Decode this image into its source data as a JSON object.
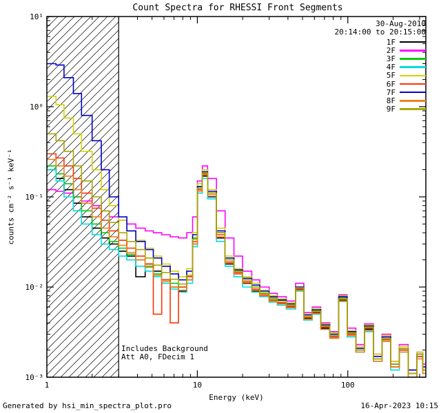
{
  "title": "Count Spectra for RHESSI Front Segments",
  "header": {
    "date": "30-Aug-2010",
    "time_range": "20:14:00 to 20:15:00"
  },
  "annotations": {
    "background": "Includes Background",
    "attenuator": "Att A0, FDecim 1"
  },
  "footer": {
    "left": "Generated by hsi_min_spectra_plot.pro",
    "right": "16-Apr-2023 10:15"
  },
  "axes": {
    "xlabel": "Energy (keV)",
    "ylabel": "counts cm⁻² s⁻¹ keV⁻¹",
    "x_tick_labels": [
      "1",
      "10",
      "100"
    ],
    "y_tick_labels": [
      "10⁻³",
      "10⁻²",
      "10⁻¹",
      "10⁰",
      "10¹"
    ]
  },
  "chart_data": {
    "type": "line",
    "title": "Count Spectra for RHESSI Front Segments",
    "xlabel": "Energy (keV)",
    "ylabel": "counts cm^-2 s^-1 keV^-1",
    "x_scale": "log",
    "y_scale": "log",
    "xlim": [
      1,
      330
    ],
    "ylim": [
      0.001,
      10
    ],
    "grid": false,
    "legend_position": "top-right",
    "hatch_region": {
      "x_min": 1,
      "x_max": 3
    },
    "x": [
      1.0,
      1.15,
      1.3,
      1.5,
      1.7,
      2.0,
      2.3,
      2.6,
      3.0,
      3.4,
      3.9,
      4.5,
      5.1,
      5.8,
      6.6,
      7.5,
      8.5,
      9.3,
      10.0,
      10.8,
      11.7,
      13.4,
      15.3,
      17.5,
      20,
      23,
      26,
      30,
      34,
      39,
      45,
      51,
      58,
      66,
      76,
      87,
      99,
      113,
      129,
      148,
      169,
      193,
      220,
      252,
      288,
      315
    ],
    "series": [
      {
        "name": "1F",
        "color": "#000000",
        "values": [
          0.2,
          0.16,
          0.12,
          0.085,
          0.06,
          0.045,
          0.035,
          0.03,
          0.025,
          0.022,
          0.013,
          0.018,
          0.015,
          0.012,
          0.01,
          0.009,
          0.012,
          0.03,
          0.12,
          0.17,
          0.1,
          0.035,
          0.018,
          0.014,
          0.011,
          0.009,
          0.008,
          0.007,
          0.0066,
          0.006,
          0.0095,
          0.0045,
          0.0052,
          0.0035,
          0.0028,
          0.0072,
          0.003,
          0.002,
          0.0034,
          0.0016,
          0.0026,
          0.0013,
          0.002,
          0.001,
          0.0017,
          0.0012
        ]
      },
      {
        "name": "2F",
        "color": "#ff00ff",
        "values": [
          0.12,
          0.115,
          0.11,
          0.1,
          0.09,
          0.08,
          0.07,
          0.06,
          0.055,
          0.05,
          0.045,
          0.042,
          0.04,
          0.038,
          0.036,
          0.035,
          0.04,
          0.06,
          0.15,
          0.22,
          0.16,
          0.07,
          0.035,
          0.022,
          0.015,
          0.012,
          0.01,
          0.0085,
          0.0078,
          0.007,
          0.011,
          0.0052,
          0.006,
          0.004,
          0.0032,
          0.0082,
          0.0035,
          0.0023,
          0.0039,
          0.0018,
          0.003,
          0.0015,
          0.0023,
          0.0012,
          0.0019,
          0.0014
        ]
      },
      {
        "name": "3F",
        "color": "#00cc00",
        "values": [
          0.22,
          0.18,
          0.14,
          0.1,
          0.07,
          0.05,
          0.04,
          0.032,
          0.027,
          0.023,
          0.02,
          0.017,
          0.014,
          0.012,
          0.011,
          0.01,
          0.013,
          0.035,
          0.13,
          0.19,
          0.11,
          0.04,
          0.02,
          0.015,
          0.012,
          0.01,
          0.0085,
          0.0075,
          0.007,
          0.0063,
          0.01,
          0.0047,
          0.0055,
          0.0037,
          0.0029,
          0.0076,
          0.0031,
          0.0021,
          0.0036,
          0.0017,
          0.0027,
          0.0014,
          0.0021,
          0.0011,
          0.0018,
          0.0012
        ]
      },
      {
        "name": "4F",
        "color": "#00dddd",
        "values": [
          0.2,
          0.15,
          0.1,
          0.07,
          0.05,
          0.038,
          0.03,
          0.026,
          0.022,
          0.02,
          0.017,
          0.015,
          0.013,
          0.011,
          0.0095,
          0.0088,
          0.011,
          0.028,
          0.11,
          0.16,
          0.095,
          0.032,
          0.017,
          0.013,
          0.01,
          0.0088,
          0.0078,
          0.0068,
          0.0063,
          0.0057,
          0.009,
          0.0043,
          0.005,
          0.0034,
          0.0027,
          0.0069,
          0.0028,
          0.0019,
          0.0032,
          0.0015,
          0.0025,
          0.0012,
          0.0019,
          0.001,
          0.0016,
          0.0011
        ]
      },
      {
        "name": "5F",
        "color": "#d4d400",
        "values": [
          1.3,
          1.05,
          0.75,
          0.5,
          0.32,
          0.2,
          0.12,
          0.08,
          0.055,
          0.042,
          0.033,
          0.027,
          0.022,
          0.018,
          0.015,
          0.013,
          0.016,
          0.04,
          0.14,
          0.2,
          0.12,
          0.045,
          0.022,
          0.016,
          0.013,
          0.011,
          0.0092,
          0.008,
          0.0074,
          0.0067,
          0.01,
          0.005,
          0.0058,
          0.0039,
          0.0031,
          0.008,
          0.0033,
          0.0022,
          0.0038,
          0.0018,
          0.0029,
          0.0015,
          0.0022,
          0.0012,
          0.0019,
          0.0013
        ]
      },
      {
        "name": "6F",
        "color": "#ff3300",
        "values": [
          0.3,
          0.27,
          0.22,
          0.16,
          0.11,
          0.075,
          0.055,
          0.042,
          0.033,
          0.027,
          0.022,
          0.018,
          0.005,
          0.012,
          0.004,
          0.01,
          0.013,
          0.032,
          0.12,
          0.18,
          0.11,
          0.038,
          0.019,
          0.0145,
          0.0115,
          0.0095,
          0.0082,
          0.0072,
          0.0067,
          0.0061,
          0.0096,
          0.0046,
          0.0053,
          0.0036,
          0.0028,
          0.0073,
          0.003,
          0.002,
          0.0035,
          0.0016,
          0.0026,
          0.0013,
          0.002,
          0.0011,
          0.0017,
          0.0012
        ]
      },
      {
        "name": "7F",
        "color": "#0000cc",
        "values": [
          3.0,
          2.9,
          2.1,
          1.4,
          0.8,
          0.42,
          0.2,
          0.1,
          0.06,
          0.042,
          0.032,
          0.026,
          0.021,
          0.017,
          0.014,
          0.012,
          0.015,
          0.038,
          0.13,
          0.19,
          0.115,
          0.042,
          0.021,
          0.0155,
          0.0125,
          0.0105,
          0.009,
          0.0078,
          0.0072,
          0.0065,
          0.01,
          0.0049,
          0.0056,
          0.0038,
          0.003,
          0.0078,
          0.0032,
          0.0021,
          0.0037,
          0.0017,
          0.0028,
          0.0014,
          0.0021,
          0.0012,
          0.0018,
          0.0013
        ]
      },
      {
        "name": "8F",
        "color": "#f08020",
        "values": [
          0.26,
          0.22,
          0.17,
          0.12,
          0.085,
          0.06,
          0.045,
          0.036,
          0.029,
          0.024,
          0.02,
          0.0165,
          0.0135,
          0.0115,
          0.01,
          0.0092,
          0.012,
          0.03,
          0.115,
          0.175,
          0.105,
          0.036,
          0.0185,
          0.014,
          0.0112,
          0.0092,
          0.008,
          0.007,
          0.0065,
          0.0059,
          0.0092,
          0.0044,
          0.0051,
          0.0034,
          0.0027,
          0.007,
          0.0029,
          0.0019,
          0.0033,
          0.0015,
          0.0025,
          0.0013,
          0.0019,
          0.001,
          0.0016,
          0.0011
        ]
      },
      {
        "name": "9F",
        "color": "#a8a800",
        "values": [
          0.5,
          0.42,
          0.32,
          0.22,
          0.15,
          0.1,
          0.07,
          0.052,
          0.04,
          0.032,
          0.026,
          0.021,
          0.0175,
          0.0145,
          0.0122,
          0.0108,
          0.0135,
          0.034,
          0.125,
          0.185,
          0.11,
          0.04,
          0.02,
          0.015,
          0.012,
          0.01,
          0.0086,
          0.0076,
          0.007,
          0.0063,
          0.0098,
          0.0047,
          0.0054,
          0.0037,
          0.0029,
          0.0074,
          0.0031,
          0.002,
          0.0036,
          0.0016,
          0.0027,
          0.0014,
          0.0021,
          0.0011,
          0.0018,
          0.0012
        ]
      }
    ]
  }
}
